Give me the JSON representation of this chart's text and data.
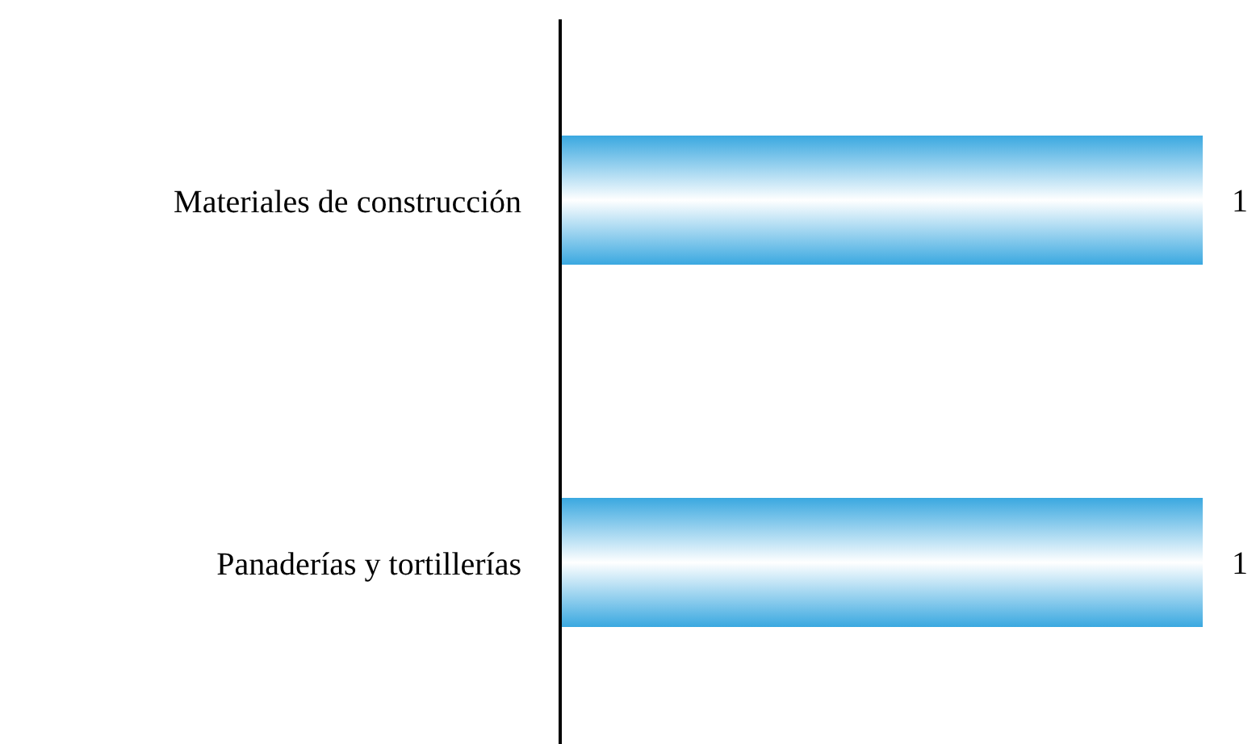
{
  "chart_data": {
    "type": "bar",
    "orientation": "horizontal",
    "categories": [
      "Materiales de construcción",
      "Panaderías y tortillerías"
    ],
    "values": [
      1,
      1
    ],
    "color": "#3aa8e0",
    "data_labels": true,
    "grid": false,
    "legend": false
  }
}
